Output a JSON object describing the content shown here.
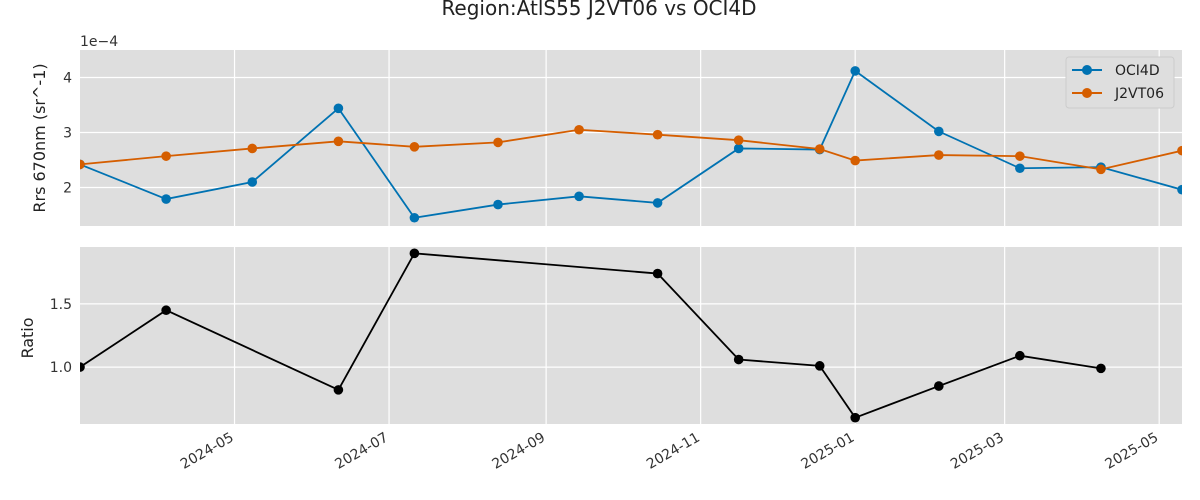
{
  "chart_data": [
    {
      "type": "line",
      "title": "Region:AtlS55 J2VT06 vs OCI4D",
      "ylabel": "Rrs 670nm (sr^-1)",
      "y_scale_label": "1e−4",
      "ylim": [
        1.3,
        4.5
      ],
      "yticks": [
        2,
        3,
        4
      ],
      "xlim": [
        "2024-03-01",
        "2025-05-10"
      ],
      "legend": {
        "placement": "top-right",
        "entries": [
          "OCI4D",
          "J2VT06"
        ]
      },
      "grid": true,
      "series": [
        {
          "name": "OCI4D",
          "color": "#0072b2",
          "points": [
            [
              "2024-03-01",
              2.42
            ],
            [
              "2024-04-04",
              1.79
            ],
            [
              "2024-05-08",
              2.1
            ],
            [
              "2024-06-11",
              3.44
            ],
            [
              "2024-07-11",
              1.45
            ],
            [
              "2024-08-13",
              1.69
            ],
            [
              "2024-09-14",
              1.84
            ],
            [
              "2024-10-15",
              1.72
            ],
            [
              "2024-11-16",
              2.71
            ],
            [
              "2024-12-18",
              2.69
            ],
            [
              "2025-01-01",
              4.12
            ],
            [
              "2025-02-03",
              3.02
            ],
            [
              "2025-03-07",
              2.35
            ],
            [
              "2025-04-08",
              2.37
            ],
            [
              "2025-05-10",
              1.96
            ]
          ]
        },
        {
          "name": "J2VT06",
          "color": "#d55e00",
          "points": [
            [
              "2024-03-01",
              2.42
            ],
            [
              "2024-04-04",
              2.57
            ],
            [
              "2024-05-08",
              2.71
            ],
            [
              "2024-06-11",
              2.84
            ],
            [
              "2024-07-11",
              2.74
            ],
            [
              "2024-08-13",
              2.82
            ],
            [
              "2024-09-14",
              3.05
            ],
            [
              "2024-10-15",
              2.96
            ],
            [
              "2024-11-16",
              2.86
            ],
            [
              "2024-12-18",
              2.7
            ],
            [
              "2025-01-01",
              2.49
            ],
            [
              "2025-02-03",
              2.59
            ],
            [
              "2025-03-07",
              2.57
            ],
            [
              "2025-04-08",
              2.33
            ],
            [
              "2025-05-10",
              2.67
            ]
          ]
        }
      ]
    },
    {
      "type": "line",
      "ylabel": "Ratio",
      "ylim": [
        0.55,
        1.95
      ],
      "yticks": [
        1.0,
        1.5
      ],
      "xlim": [
        "2024-03-01",
        "2025-05-10"
      ],
      "xticks": [
        "2024-05",
        "2024-07",
        "2024-09",
        "2024-11",
        "2025-01",
        "2025-03",
        "2025-05"
      ],
      "grid": true,
      "series": [
        {
          "color": "#000000",
          "points": [
            [
              "2024-03-01",
              1.0
            ],
            [
              "2024-04-04",
              1.45
            ],
            [
              "2024-06-11",
              0.82
            ],
            [
              "2024-07-11",
              1.9
            ],
            [
              "2024-10-15",
              1.74
            ],
            [
              "2024-11-16",
              1.06
            ],
            [
              "2024-12-18",
              1.01
            ],
            [
              "2025-01-01",
              0.6
            ],
            [
              "2025-02-03",
              0.85
            ],
            [
              "2025-03-07",
              1.09
            ],
            [
              "2025-04-08",
              0.99
            ]
          ]
        }
      ]
    }
  ]
}
